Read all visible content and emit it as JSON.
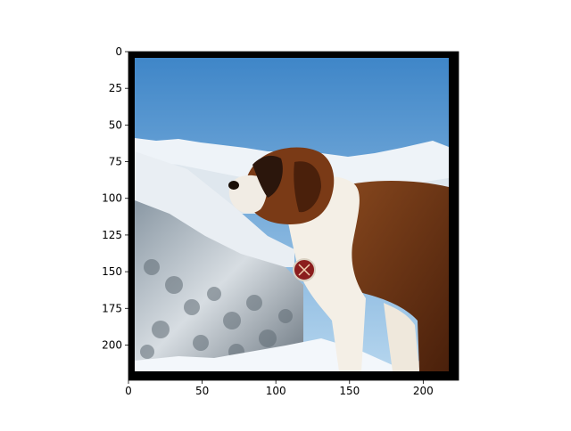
{
  "figure": {
    "x_ticks": [
      "0",
      "50",
      "100",
      "150",
      "200"
    ],
    "y_ticks": [
      "0",
      "25",
      "50",
      "75",
      "100",
      "125",
      "150",
      "175",
      "200"
    ]
  },
  "photo": {
    "subject": "dog-icon",
    "colors": {
      "sky_top": "#3f86c8",
      "sky_bottom": "#b6d6ee",
      "snow": "#eef3f8",
      "dog_brown": "#7a3a16",
      "dog_dark": "#2b160c",
      "dog_white": "#f4efe6",
      "border": "#000000"
    }
  }
}
